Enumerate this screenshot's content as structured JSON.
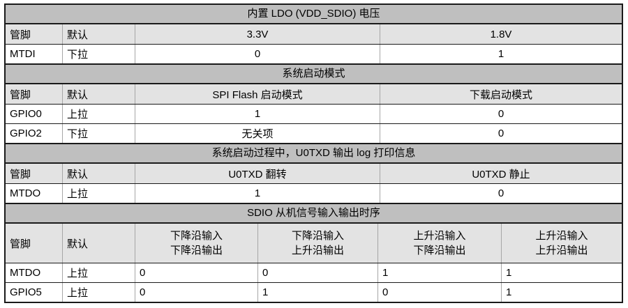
{
  "table": {
    "colors": {
      "title_bg": "#bfbfbf",
      "header_bg": "#e3e3e3",
      "border_dark": "#1a1a1a",
      "border_light": "#a6a6a6"
    },
    "sections": [
      {
        "title": "内置 LDO (VDD_SDIO) 电压",
        "headers": [
          "管脚",
          "默认",
          "3.3V",
          "1.8V"
        ],
        "rows": [
          [
            "MTDI",
            "下拉",
            "0",
            "1"
          ]
        ]
      },
      {
        "title": "系统启动模式",
        "headers": [
          "管脚",
          "默认",
          "SPI Flash 启动模式",
          "下载启动模式"
        ],
        "rows": [
          [
            "GPIO0",
            "上拉",
            "1",
            "0"
          ],
          [
            "GPIO2",
            "下拉",
            "无关项",
            "0"
          ]
        ]
      },
      {
        "title": "系统启动过程中，U0TXD 输出 log 打印信息",
        "headers": [
          "管脚",
          "默认",
          "U0TXD 翻转",
          "U0TXD 静止"
        ],
        "rows": [
          [
            "MTDO",
            "上拉",
            "1",
            "0"
          ]
        ]
      },
      {
        "title": "SDIO 从机信号输入输出时序",
        "headers": [
          "管脚",
          "默认",
          "下降沿输入\n下降沿输出",
          "下降沿输入\n上升沿输出",
          "上升沿输入\n下降沿输出",
          "上升沿输入\n上升沿输出"
        ],
        "rows": [
          [
            "MTDO",
            "上拉",
            "0",
            "0",
            "1",
            "1"
          ],
          [
            "GPIO5",
            "上拉",
            "0",
            "1",
            "0",
            "1"
          ]
        ]
      }
    ]
  }
}
